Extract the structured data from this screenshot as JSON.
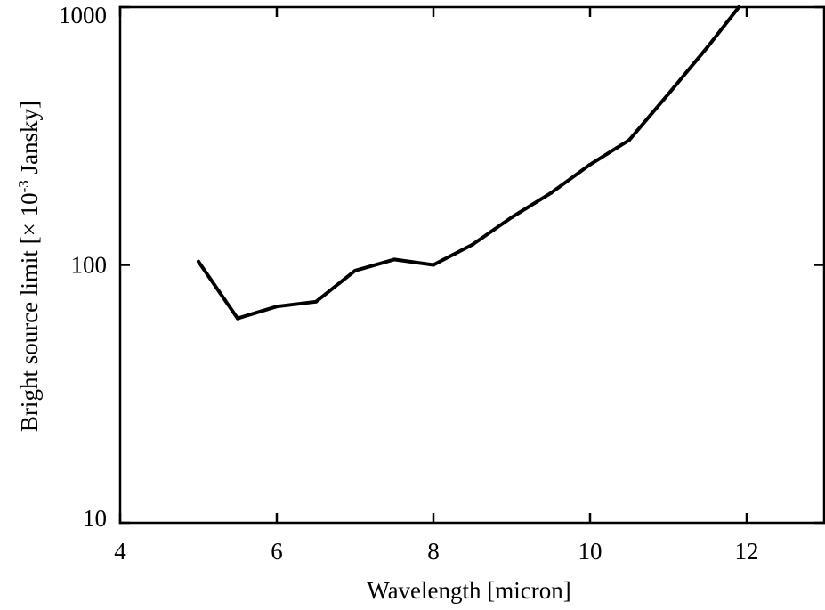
{
  "chart_data": {
    "type": "line",
    "title": "",
    "xlabel": "Wavelength [micron]",
    "ylabel": {
      "before": "Bright source limit [× 10",
      "sup": "-3",
      "after": " Jansky]"
    },
    "x_scale": "linear",
    "y_scale": "log",
    "xlim": [
      4,
      13
    ],
    "ylim": [
      10,
      1000
    ],
    "x_ticks": [
      4,
      6,
      8,
      10,
      12
    ],
    "x_tick_labels": [
      "4",
      "6",
      "8",
      "10",
      "12"
    ],
    "y_ticks": [
      10,
      100,
      1000
    ],
    "y_tick_labels": [
      "10",
      "100",
      "1000"
    ],
    "grid": false,
    "legend": "none",
    "series": [
      {
        "color": "#000000",
        "x": [
          5.0,
          5.5,
          6.0,
          6.5,
          7.0,
          7.5,
          8.0,
          8.5,
          9.0,
          9.5,
          10.0,
          10.5,
          11.0,
          11.5,
          11.9
        ],
        "y": [
          103,
          62,
          69,
          72,
          95,
          105,
          100,
          120,
          153,
          190,
          245,
          305,
          460,
          700,
          1000
        ]
      }
    ]
  }
}
